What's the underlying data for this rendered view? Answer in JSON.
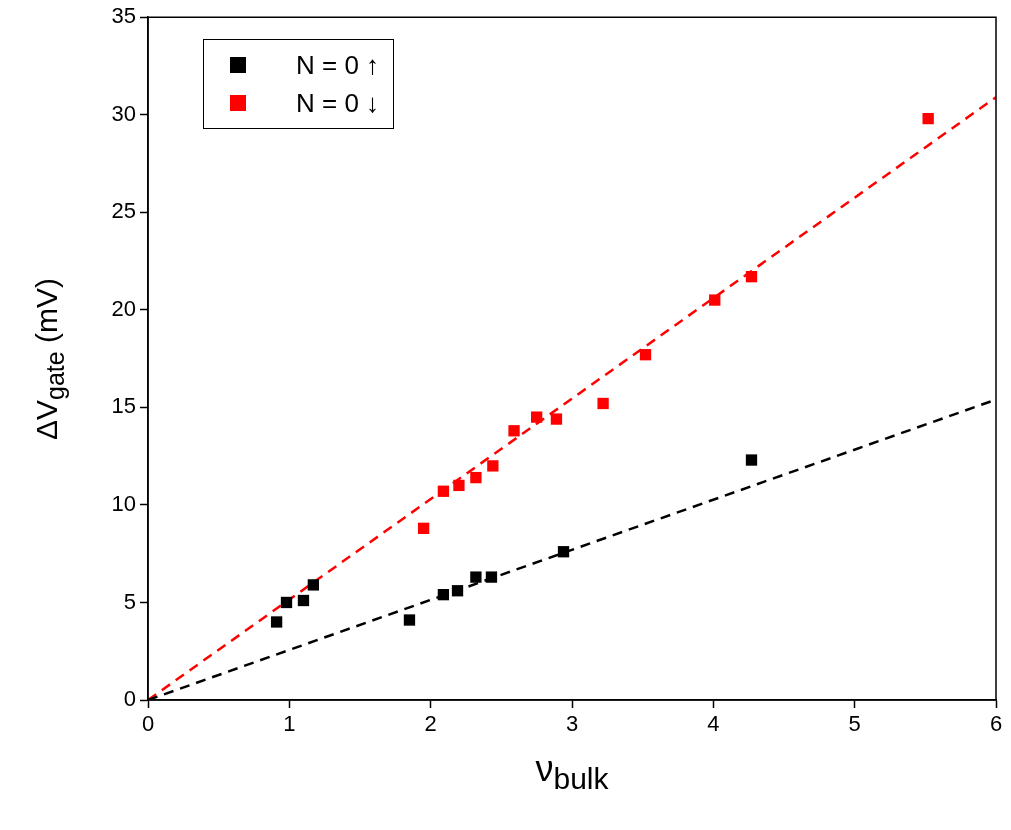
{
  "chart_data": {
    "type": "scatter",
    "xlabel": "ν$_{bulk}$",
    "ylabel": "ΔV$_{gate}$ (mV)",
    "xlim": [
      0,
      6
    ],
    "xticks": [
      0,
      1,
      2,
      3,
      4,
      5,
      6
    ],
    "ylim": [
      0,
      35
    ],
    "yticks": [
      0,
      5,
      10,
      15,
      20,
      25,
      30,
      35
    ],
    "grid": false,
    "legend": "top left",
    "marker": "square",
    "series": [
      {
        "name": "N = 0 ↑",
        "color": "#000000",
        "x": [
          0.91,
          0.98,
          1.1,
          1.17,
          1.85,
          2.09,
          2.19,
          2.32,
          2.43,
          2.94,
          4.27
        ],
        "values": [
          4.0,
          5.0,
          5.1,
          5.9,
          4.1,
          5.4,
          5.6,
          6.3,
          6.3,
          7.6,
          12.3
        ]
      },
      {
        "name": "N = 0 ↓",
        "color": "#ff0000",
        "x": [
          1.95,
          2.09,
          2.2,
          2.32,
          2.44,
          2.59,
          2.75,
          2.89,
          3.22,
          3.52,
          4.01,
          4.27,
          5.52
        ],
        "values": [
          8.8,
          10.7,
          11.0,
          11.4,
          12.0,
          13.8,
          14.5,
          14.4,
          15.2,
          17.7,
          20.5,
          21.7,
          29.8
        ]
      },
      {
        "type": "line",
        "color": "#000000",
        "line_style": "dashed",
        "marker": "none",
        "x": [
          0,
          6
        ],
        "values": [
          0,
          15.4
        ]
      },
      {
        "type": "line",
        "color": "#ff0000",
        "line_style": "dashed",
        "marker": "none",
        "x": [
          0,
          6
        ],
        "values": [
          0,
          30.9
        ]
      }
    ]
  }
}
